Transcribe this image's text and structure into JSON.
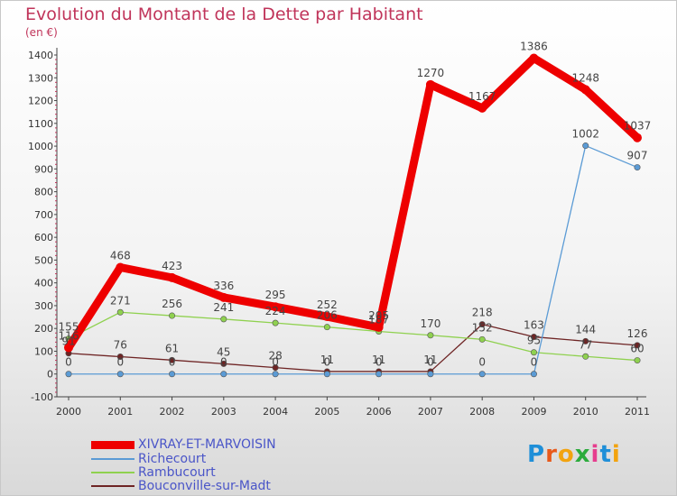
{
  "title": "Evolution du Montant de la Dette par Habitant",
  "unit": "(en €)",
  "logo": {
    "text": "Proxiti",
    "letter_colors": [
      "#1f8fd8",
      "#e8591a",
      "#f2a30f",
      "#2cab3c",
      "#e63d8e",
      "#1f8fd8",
      "#f2a30f"
    ]
  },
  "chart_data": {
    "type": "line",
    "x": [
      "2000",
      "2001",
      "2002",
      "2003",
      "2004",
      "2005",
      "2006",
      "2007",
      "2008",
      "2009",
      "2010",
      "2011"
    ],
    "ylim": [
      -100,
      1400
    ],
    "yticks": [
      -100,
      0,
      100,
      200,
      300,
      400,
      500,
      600,
      700,
      800,
      900,
      1000,
      1100,
      1200,
      1300,
      1400
    ],
    "grid": false,
    "legend_position": "bottom-left",
    "series": [
      {
        "name": "XIVRAY-ET-MARVOISIN",
        "color": "#ee0000",
        "values": [
          116,
          468,
          423,
          336,
          295,
          252,
          205,
          1270,
          1167,
          1386,
          1248,
          1037
        ],
        "labels": [
          "116",
          "468",
          "423",
          "336",
          "295",
          "252",
          "205",
          "1270",
          "1167",
          "1386",
          "1248",
          "1037"
        ]
      },
      {
        "name": "Richecourt",
        "color": "#5b9bd5",
        "values": [
          0,
          0,
          0,
          0,
          0,
          0,
          0,
          0,
          0,
          0,
          1002,
          907
        ],
        "labels": [
          "0",
          "0",
          "0",
          "0",
          "0",
          "0",
          "0",
          "0",
          "0",
          "0",
          "1002",
          "907"
        ]
      },
      {
        "name": "Rambucourt",
        "color": "#8fd14f",
        "values": [
          155,
          271,
          256,
          241,
          224,
          206,
          187,
          170,
          152,
          95,
          77,
          60
        ],
        "labels": [
          "155",
          "271",
          "256",
          "241",
          "224",
          "206",
          "187",
          "170",
          "152",
          "95",
          "77",
          "60"
        ]
      },
      {
        "name": "Bouconville-sur-Madt",
        "color": "#6e2424",
        "values": [
          91,
          76,
          61,
          45,
          28,
          11,
          11,
          11,
          218,
          163,
          144,
          126
        ],
        "labels": [
          "91",
          "76",
          "61",
          "45",
          "28",
          "11",
          "11",
          "11",
          "218",
          "163",
          "144",
          "126"
        ]
      }
    ]
  }
}
